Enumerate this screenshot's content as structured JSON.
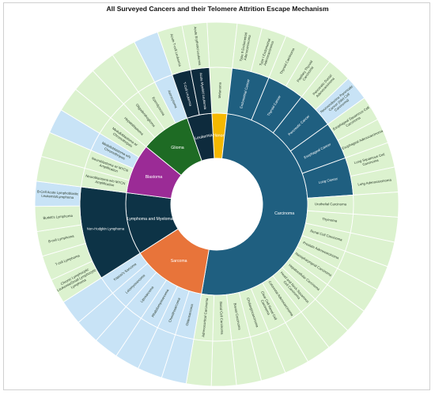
{
  "chart_data": {
    "type": "sunburst",
    "title": "All Surveyed Cancers and their Telomere Attrition Escape Mechanism",
    "tree": [
      {
        "name": "Melanoma",
        "color": "#f5b800",
        "children": [
          {
            "name": "Melanoma",
            "children": [
              {
                "name": "",
                "value": 1.2
              }
            ]
          }
        ]
      },
      {
        "name": "Carcinoma",
        "color": "#1f5f80",
        "children": [
          {
            "name": "Endometrial Cancer",
            "children": [
              {
                "name": "Type II Endometrial Adenocarcinoma",
                "value": 1
              },
              {
                "name": "Type I Endometrial Adenocarcinoma",
                "value": 1
              }
            ]
          },
          {
            "name": "Thyroid Cancer",
            "children": [
              {
                "name": "Thyroid Carcinoma",
                "value": 1
              },
              {
                "name": "Papillary Thyroid Carcinoma",
                "value": 1
              }
            ]
          },
          {
            "name": "Pancreatic Cancer",
            "children": [
              {
                "name": "Pancreatic Ductal Adenocarcinoma",
                "value": 1
              },
              {
                "name": "Neuroendocrine Pancreatic Cancer (Islet Cell Carcinoma)",
                "value": 1,
                "alt": true
              }
            ]
          },
          {
            "name": "Esophageal Cancer",
            "children": [
              {
                "name": "Esophageal Squamous Cell Carcinoma",
                "value": 1
              },
              {
                "name": "Esophageal Adenocarcinoma",
                "value": 1
              }
            ]
          },
          {
            "name": "Lung Cancer",
            "children": [
              {
                "name": "Lung Squamous Cell Carcinoma",
                "value": 1
              },
              {
                "name": "Lung Adenocarcinoma",
                "value": 1
              }
            ]
          },
          {
            "name": "Urothelial Carcinoma",
            "children": [
              {
                "name": "",
                "value": 1
              }
            ]
          },
          {
            "name": "Thymoma",
            "children": [
              {
                "name": "",
                "value": 1
              }
            ]
          },
          {
            "name": "Renal Cell Carcinoma",
            "children": [
              {
                "name": "",
                "value": 1
              }
            ]
          },
          {
            "name": "Prostate Adenocarcinoma",
            "children": [
              {
                "name": "",
                "value": 1
              }
            ]
          },
          {
            "name": "Nasopharyngeal Carcinoma",
            "children": [
              {
                "name": "",
                "value": 1
              }
            ]
          },
          {
            "name": "Hepatocellular Carcinoma",
            "children": [
              {
                "name": "",
                "value": 1
              }
            ]
          },
          {
            "name": "Head and Neck Squamous Cell Carcinoma",
            "children": [
              {
                "name": "",
                "value": 1
              }
            ]
          },
          {
            "name": "Colorectal Adenocarcinoma",
            "children": [
              {
                "name": "",
                "value": 1
              }
            ]
          },
          {
            "name": "Clear Cell Renal Cell Carcinoma",
            "children": [
              {
                "name": "",
                "value": 1
              }
            ]
          },
          {
            "name": "Cholangiocarcinoma",
            "children": [
              {
                "name": "",
                "value": 1
              }
            ]
          },
          {
            "name": "Breast Carcinoma",
            "children": [
              {
                "name": "",
                "value": 1
              }
            ]
          },
          {
            "name": "Basal Cell Carcinoma",
            "children": [
              {
                "name": "",
                "value": 1
              }
            ]
          },
          {
            "name": "Adrenocortical Carcinoma",
            "children": [
              {
                "name": "",
                "value": 1
              }
            ]
          }
        ]
      },
      {
        "name": "Sarcoma",
        "color": "#e8743a",
        "children": [
          {
            "name": "Osteosarcoma",
            "children": [
              {
                "name": "",
                "value": 1
              }
            ],
            "alt": true
          },
          {
            "name": "Chondrosarcoma",
            "children": [
              {
                "name": "",
                "value": 1
              }
            ],
            "alt": true
          },
          {
            "name": "Rhabdomyosarcoma",
            "children": [
              {
                "name": "",
                "value": 1
              }
            ],
            "alt": true
          },
          {
            "name": "Liposarcoma",
            "children": [
              {
                "name": "",
                "value": 1
              }
            ],
            "alt": true
          },
          {
            "name": "Leiomyosarcoma",
            "children": [
              {
                "name": "",
                "value": 1
              }
            ],
            "alt": true
          },
          {
            "name": "Kaposi's Sarcoma",
            "children": [
              {
                "name": "",
                "value": 1
              }
            ],
            "alt": true
          }
        ]
      },
      {
        "name": "Lymphoma and Myeloma",
        "color": "#0d3346",
        "children": [
          {
            "name": "Non-Hodgkin Lymphoma",
            "children": [
              {
                "name": "Chronic Lymphocytic Leukemia/Small Lymphocytic Lymphoma",
                "value": 1
              },
              {
                "name": "T-cell Lymphoma",
                "value": 1
              },
              {
                "name": "B-cell Lymphoma",
                "value": 1
              },
              {
                "name": "Burkitt's Lymphoma",
                "value": 1
              },
              {
                "name": "B-Cell Acute Lymphoblastic Leukemia/Lymphoma",
                "value": 1,
                "alt": true
              }
            ]
          }
        ]
      },
      {
        "name": "Blastoma",
        "color": "#9b2b96",
        "children": [
          {
            "name": "Neuroblastoma w/o MYCN Amplification",
            "children": [
              {
                "name": "",
                "value": 1
              }
            ]
          },
          {
            "name": "Neuroblastoma w/ MYCN Amplification",
            "children": [
              {
                "name": "",
                "value": 1
              }
            ]
          },
          {
            "name": "Medulloblastoma w/o Chromothripsis",
            "children": [
              {
                "name": "",
                "value": 1
              }
            ],
            "alt": true
          },
          {
            "name": "Medulloblastoma w/ Chromothripsis",
            "children": [
              {
                "name": "",
                "value": 1
              }
            ]
          }
        ]
      },
      {
        "name": "Glioma",
        "color": "#1e6b24",
        "children": [
          {
            "name": "Hepatoblastoma",
            "children": [
              {
                "name": "",
                "value": 1
              }
            ]
          },
          {
            "name": "Oligodendroglioma",
            "children": [
              {
                "name": "",
                "value": 1
              }
            ]
          },
          {
            "name": "Ependymoma",
            "children": [
              {
                "name": "",
                "value": 1
              }
            ]
          },
          {
            "name": "Astrocytoma",
            "children": [
              {
                "name": "",
                "value": 1
              }
            ],
            "alt": true
          }
        ]
      },
      {
        "name": "Leukemia",
        "color": "#0e2b3d",
        "children": [
          {
            "name": "T-Cell Leukemia",
            "children": [
              {
                "name": "Acute T-cell Leukemia",
                "value": 1
              }
            ]
          },
          {
            "name": "Acute Myeloid Leukemia",
            "children": [
              {
                "name": "Acute Erythroid Leukemia",
                "value": 1
              }
            ]
          }
        ]
      }
    ],
    "leaf_colors": {
      "default": "#dcf2cf",
      "alt": "#c8e3f6"
    }
  }
}
